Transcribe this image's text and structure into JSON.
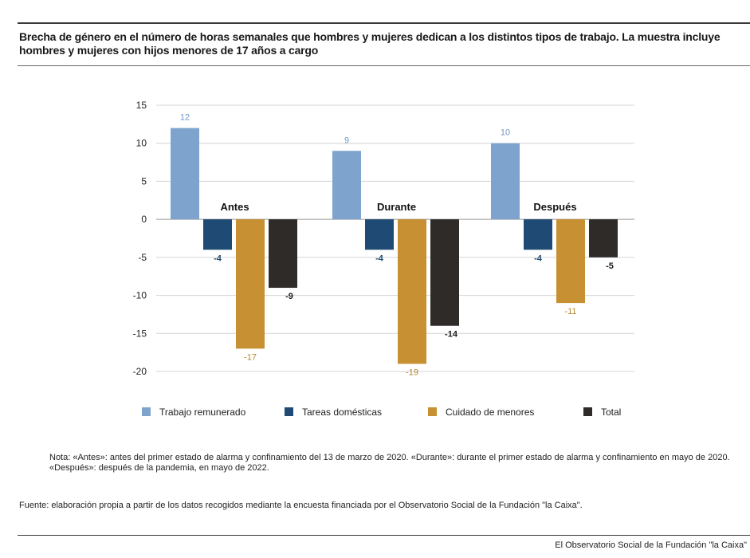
{
  "page": {
    "title": "Brecha de género en el número de horas semanales que hombres y mujeres dedican a los distintos tipos de trabajo. La muestra incluye hombres y mujeres con hijos menores de 17 años a cargo",
    "note": "Nota: «Antes»: antes del primer estado de alarma y confinamiento del 13 de marzo de 2020. «Durante»: durante el primer estado de alarma y confinamiento en mayo de 2020. «Después»: después de la pandemia, en mayo de 2022.",
    "source": "Fuente: elaboración propia a partir de los datos recogidos mediante la encuesta financiada por el Observatorio Social de la Fundación \"la Caixa\".",
    "footer": "El Observatorio Social de la Fundación \"la Caixa\""
  },
  "chart_data": {
    "type": "bar",
    "title": "Brecha de género en el número de horas semanales que hombres y mujeres dedican a los distintos tipos de trabajo. La muestra incluye hombres y mujeres con hijos menores de 17 años a cargo",
    "categories": [
      "Antes",
      "Durante",
      "Después"
    ],
    "series": [
      {
        "name": "Trabajo remunerado",
        "color": "#7ea3cc",
        "label_color": "#6f97c6",
        "values": [
          12,
          9,
          10
        ]
      },
      {
        "name": "Tareas domésticas",
        "color": "#1f4a73",
        "label_color": "#1f4a73",
        "values": [
          -4,
          -4,
          -4
        ]
      },
      {
        "name": "Cuidado de menores",
        "color": "#c79033",
        "label_color": "#b8842b",
        "values": [
          -17,
          -19,
          -11
        ]
      },
      {
        "name": "Total",
        "color": "#2e2b29",
        "label_color": "#1a1a1a",
        "values": [
          -9,
          -14,
          -5
        ]
      }
    ],
    "ylim": [
      -20,
      15
    ],
    "yticks": [
      15,
      10,
      5,
      0,
      -5,
      -10,
      -15,
      -20
    ],
    "xlabel": "",
    "ylabel": "",
    "grid": true,
    "legend": "bottom"
  }
}
